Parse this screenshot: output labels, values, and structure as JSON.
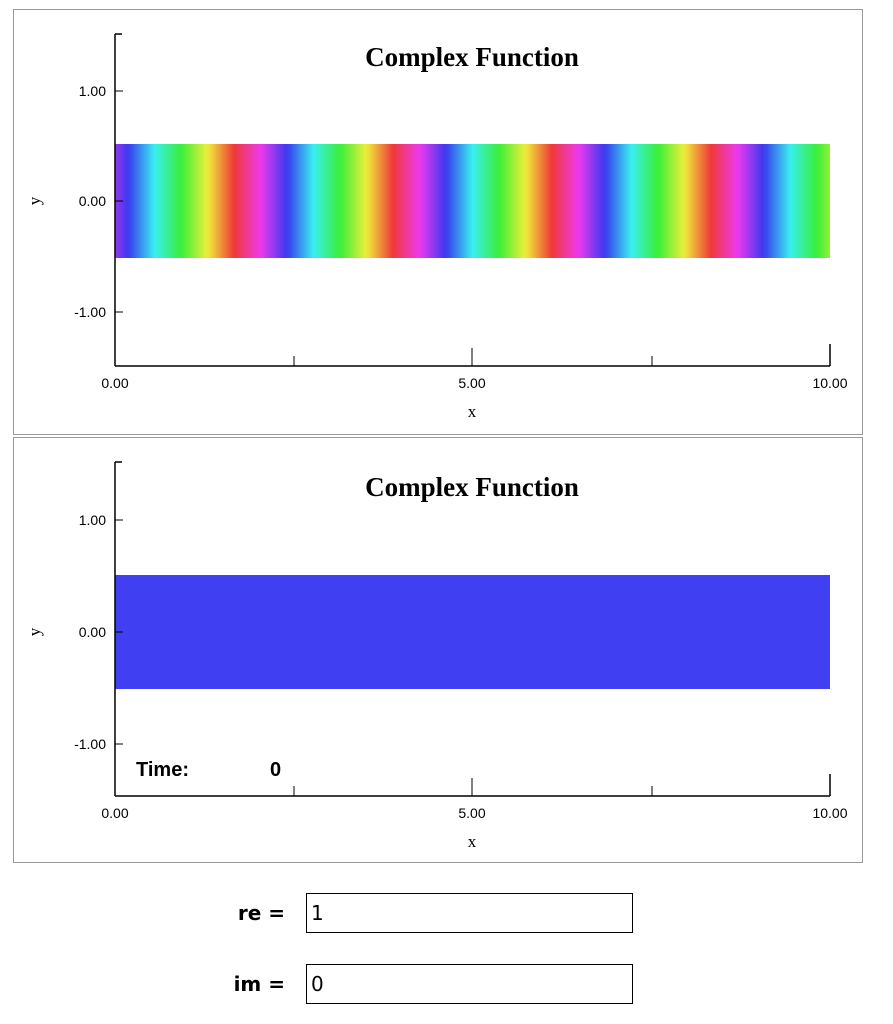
{
  "plot1": {
    "title": "Complex Function",
    "xlabel": "x",
    "ylabel": "y",
    "xticks": [
      "0.00",
      "5.00",
      "10.00"
    ],
    "yticks": [
      "1.00",
      "0.00",
      "-1.00"
    ]
  },
  "plot2": {
    "title": "Complex Function",
    "xlabel": "x",
    "ylabel": "y",
    "xticks": [
      "0.00",
      "5.00",
      "10.00"
    ],
    "yticks": [
      "1.00",
      "0.00",
      "-1.00"
    ],
    "time_label": "Time:",
    "time_value": "0",
    "fill_color": "#4040f2"
  },
  "chart_data": [
    {
      "type": "heatmap",
      "title": "Complex Function",
      "xlabel": "x",
      "ylabel": "y",
      "xlim": [
        0,
        10
      ],
      "ylim": [
        -1.5,
        1.5
      ],
      "band_y": [
        -0.5,
        0.5
      ],
      "colormap": "phase-hue",
      "phase_cycles": 4.5
    },
    {
      "type": "heatmap",
      "title": "Complex Function",
      "xlabel": "x",
      "ylabel": "y",
      "xlim": [
        0,
        10
      ],
      "ylim": [
        -1.5,
        1.5
      ],
      "band_y": [
        -0.5,
        0.5
      ],
      "fill": "#4040f2"
    }
  ],
  "form": {
    "re_label": "re =",
    "re_value": "1",
    "im_label": "im =",
    "im_value": "0"
  }
}
